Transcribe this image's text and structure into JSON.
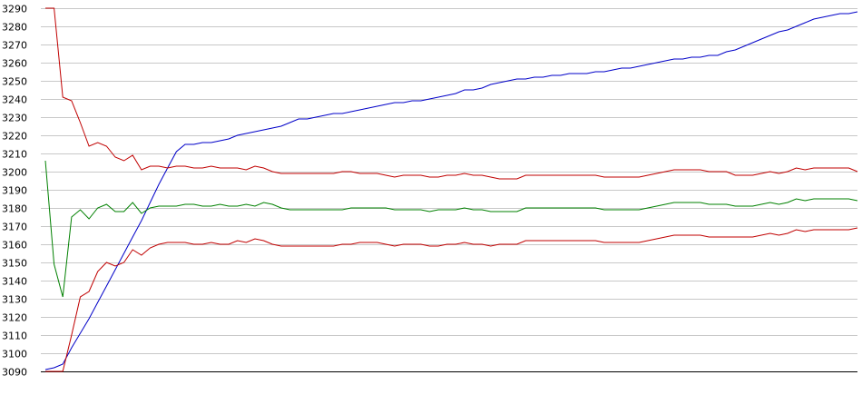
{
  "chart_data": {
    "type": "line",
    "title": "",
    "xlabel": "",
    "ylabel": "",
    "ylim": [
      3090,
      3290
    ],
    "yticks": [
      3090,
      3100,
      3110,
      3120,
      3130,
      3140,
      3150,
      3160,
      3170,
      3180,
      3190,
      3200,
      3210,
      3220,
      3230,
      3240,
      3250,
      3260,
      3270,
      3280,
      3290
    ],
    "grid": true,
    "legend": "none",
    "colors": {
      "blue": "#0000c8",
      "red": "#c00000",
      "green": "#008000",
      "grid": "#c8c8c8",
      "axis": "#000000"
    },
    "x": [
      0,
      1,
      2,
      3,
      4,
      5,
      6,
      7,
      8,
      9,
      10,
      11,
      12,
      13,
      14,
      15,
      16,
      17,
      18,
      19,
      20,
      21,
      22,
      23,
      24,
      25,
      26,
      27,
      28,
      29,
      30,
      31,
      32,
      33,
      34,
      35,
      36,
      37,
      38,
      39,
      40,
      41,
      42,
      43,
      44,
      45,
      46,
      47,
      48,
      49,
      50,
      51,
      52,
      53,
      54,
      55,
      56,
      57,
      58,
      59,
      60,
      61,
      62,
      63,
      64,
      65,
      66,
      67,
      68,
      69,
      70,
      71,
      72,
      73,
      74,
      75,
      76,
      77,
      78,
      79,
      80,
      81,
      82,
      83,
      84,
      85,
      86,
      87,
      88,
      89,
      90,
      91,
      92,
      93
    ],
    "series": [
      {
        "color": "#0000c8",
        "values": [
          3091,
          3092,
          3094,
          3103,
          3111,
          3119,
          3128,
          3137,
          3146,
          3155,
          3164,
          3173,
          3183,
          3193,
          3202,
          3211,
          3215,
          3215,
          3216,
          3216,
          3217,
          3218,
          3220,
          3221,
          3222,
          3223,
          3224,
          3225,
          3227,
          3229,
          3229,
          3230,
          3231,
          3232,
          3232,
          3233,
          3234,
          3235,
          3236,
          3237,
          3238,
          3238,
          3239,
          3239,
          3240,
          3241,
          3242,
          3243,
          3245,
          3245,
          3246,
          3248,
          3249,
          3250,
          3251,
          3251,
          3252,
          3252,
          3253,
          3253,
          3254,
          3254,
          3254,
          3255,
          3255,
          3256,
          3257,
          3257,
          3258,
          3259,
          3260,
          3261,
          3262,
          3262,
          3263,
          3263,
          3264,
          3264,
          3266,
          3267,
          3269,
          3271,
          3273,
          3275,
          3277,
          3278,
          3280,
          3282,
          3284,
          3285,
          3286,
          3287,
          3287,
          3288
        ]
      },
      {
        "color": "#c00000",
        "values": [
          3290,
          3290,
          3241,
          3239,
          3227,
          3214,
          3216,
          3214,
          3208,
          3206,
          3209,
          3201,
          3203,
          3203,
          3202,
          3203,
          3203,
          3202,
          3202,
          3203,
          3202,
          3202,
          3202,
          3201,
          3203,
          3202,
          3200,
          3199,
          3199,
          3199,
          3199,
          3199,
          3199,
          3199,
          3200,
          3200,
          3199,
          3199,
          3199,
          3198,
          3197,
          3198,
          3198,
          3198,
          3197,
          3197,
          3198,
          3198,
          3199,
          3198,
          3198,
          3197,
          3196,
          3196,
          3196,
          3198,
          3198,
          3198,
          3198,
          3198,
          3198,
          3198,
          3198,
          3198,
          3197,
          3197,
          3197,
          3197,
          3197,
          3198,
          3199,
          3200,
          3201,
          3201,
          3201,
          3201,
          3200,
          3200,
          3200,
          3198,
          3198,
          3198,
          3199,
          3200,
          3199,
          3200,
          3202,
          3201,
          3202,
          3202,
          3202,
          3202,
          3202,
          3200
        ]
      },
      {
        "color": "#008000",
        "values": [
          3206,
          3149,
          3131,
          3175,
          3179,
          3174,
          3180,
          3182,
          3178,
          3178,
          3183,
          3177,
          3180,
          3181,
          3181,
          3181,
          3182,
          3182,
          3181,
          3181,
          3182,
          3181,
          3181,
          3182,
          3181,
          3183,
          3182,
          3180,
          3179,
          3179,
          3179,
          3179,
          3179,
          3179,
          3179,
          3180,
          3180,
          3180,
          3180,
          3180,
          3179,
          3179,
          3179,
          3179,
          3178,
          3179,
          3179,
          3179,
          3180,
          3179,
          3179,
          3178,
          3178,
          3178,
          3178,
          3180,
          3180,
          3180,
          3180,
          3180,
          3180,
          3180,
          3180,
          3180,
          3179,
          3179,
          3179,
          3179,
          3179,
          3180,
          3181,
          3182,
          3183,
          3183,
          3183,
          3183,
          3182,
          3182,
          3182,
          3181,
          3181,
          3181,
          3182,
          3183,
          3182,
          3183,
          3185,
          3184,
          3185,
          3185,
          3185,
          3185,
          3185,
          3184
        ]
      },
      {
        "color": "#c00000",
        "values": [
          3090,
          3090,
          3090,
          3110,
          3131,
          3134,
          3145,
          3150,
          3148,
          3150,
          3157,
          3154,
          3158,
          3160,
          3161,
          3161,
          3161,
          3160,
          3160,
          3161,
          3160,
          3160,
          3162,
          3161,
          3163,
          3162,
          3160,
          3159,
          3159,
          3159,
          3159,
          3159,
          3159,
          3159,
          3160,
          3160,
          3161,
          3161,
          3161,
          3160,
          3159,
          3160,
          3160,
          3160,
          3159,
          3159,
          3160,
          3160,
          3161,
          3160,
          3160,
          3159,
          3160,
          3160,
          3160,
          3162,
          3162,
          3162,
          3162,
          3162,
          3162,
          3162,
          3162,
          3162,
          3161,
          3161,
          3161,
          3161,
          3161,
          3162,
          3163,
          3164,
          3165,
          3165,
          3165,
          3165,
          3164,
          3164,
          3164,
          3164,
          3164,
          3164,
          3165,
          3166,
          3165,
          3166,
          3168,
          3167,
          3168,
          3168,
          3168,
          3168,
          3168,
          3169
        ]
      }
    ]
  }
}
